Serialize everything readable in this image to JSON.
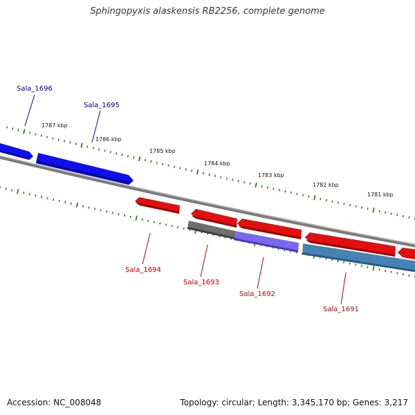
{
  "title": "Sphingopyxis alaskensis RB2256, complete genome",
  "footer": {
    "accession": "Accession: NC_008048",
    "topology": "Topology: circular; Length: 3,345,170 bp; Genes: 3,217"
  },
  "colors": {
    "backbone": "#7a7a7a",
    "tick": "#2e7d1e",
    "forward_gene": "#1010ee",
    "reverse_gene": "#e01010",
    "forward_label": "#00008b",
    "reverse_label": "#cc0000",
    "gray_feature": "#6e6e6e",
    "purple_feature": "#7b68ee",
    "steelblue_feature": "#4682b4"
  },
  "scale_labels": [
    "1787 kbp",
    "1786 kbp",
    "1785 kbp",
    "1784 kbp",
    "1783 kbp",
    "1782 kbp",
    "1781 kbp"
  ],
  "genes": [
    {
      "name": "Sala_1696",
      "strand": "forward"
    },
    {
      "name": "Sala_1695",
      "strand": "forward"
    },
    {
      "name": "Sala_1694",
      "strand": "reverse"
    },
    {
      "name": "Sala_1693",
      "strand": "reverse"
    },
    {
      "name": "Sala_1692",
      "strand": "reverse"
    },
    {
      "name": "Sala_1691",
      "strand": "reverse"
    }
  ],
  "extra_features": [
    {
      "type": "gray"
    },
    {
      "type": "purple"
    },
    {
      "type": "steelblue"
    }
  ]
}
